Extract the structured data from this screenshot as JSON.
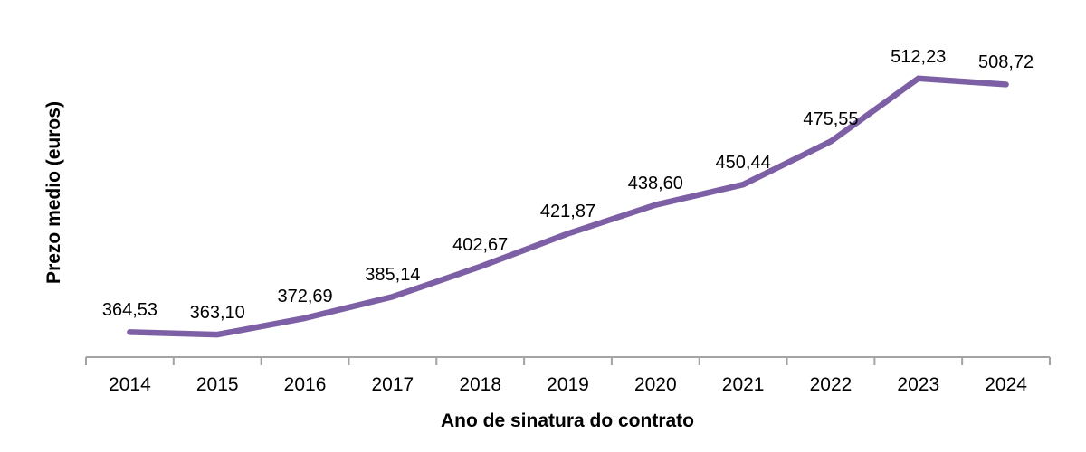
{
  "chart_data": {
    "type": "line",
    "title": "",
    "categories": [
      "2014",
      "2015",
      "2016",
      "2017",
      "2018",
      "2019",
      "2020",
      "2021",
      "2022",
      "2023",
      "2024"
    ],
    "values": [
      364.53,
      363.1,
      372.69,
      385.14,
      402.67,
      421.87,
      438.6,
      450.44,
      475.55,
      512.23,
      508.72
    ],
    "point_labels": [
      "364,53",
      "363,10",
      "372,69",
      "385,14",
      "402,67",
      "421,87",
      "438,60",
      "450,44",
      "475,55",
      "512,23",
      "508,72"
    ],
    "xlabel": "Ano de sinatura do contrato",
    "ylabel": "Prezo medio (euros)",
    "ylim": [
      350,
      550
    ],
    "grid": false,
    "legend": "none",
    "line_color": "#7D5FA5",
    "axis_color": "#A3A3A3",
    "text_color": "#000000"
  }
}
